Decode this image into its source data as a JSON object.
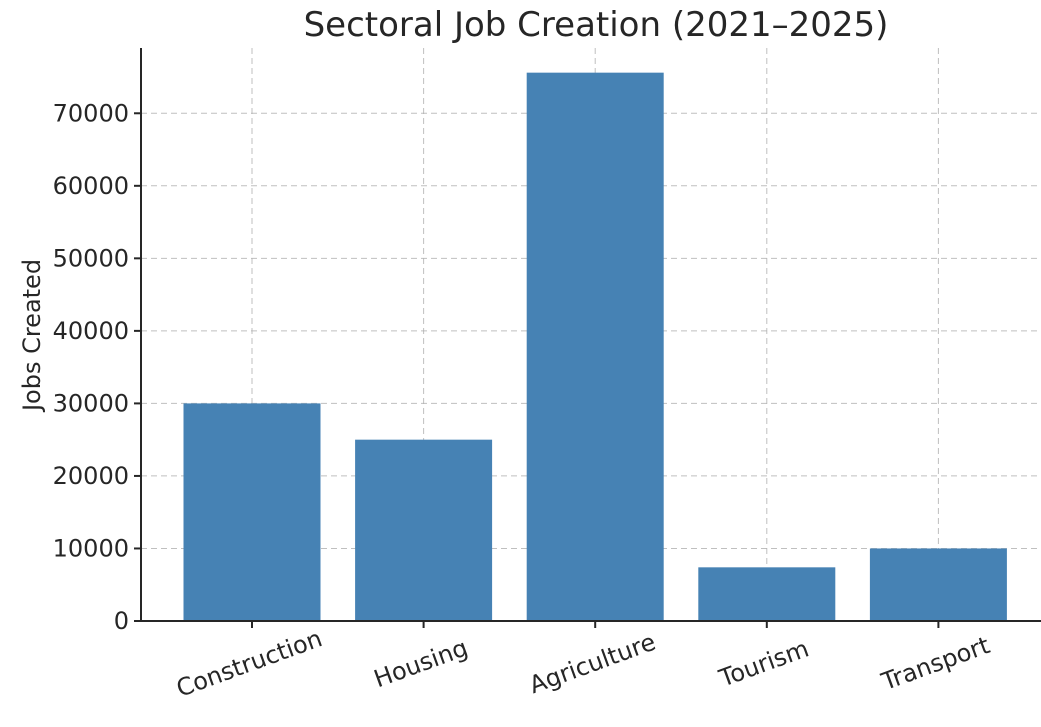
{
  "chart_data": {
    "type": "bar",
    "title": "Sectoral Job Creation (2021–2025)",
    "xlabel": "",
    "ylabel": "Jobs Created",
    "categories": [
      "Construction",
      "Housing",
      "Agriculture",
      "Tourism",
      "Transport"
    ],
    "values": [
      30000,
      25000,
      75600,
      7400,
      10000
    ],
    "ylim": [
      0,
      79000
    ],
    "yticks": [
      0,
      10000,
      20000,
      30000,
      40000,
      50000,
      60000,
      70000
    ],
    "ytick_labels": [
      "0",
      "10000",
      "20000",
      "30000",
      "40000",
      "50000",
      "60000",
      "70000"
    ],
    "bar_color": "#4682b4",
    "grid": true
  }
}
